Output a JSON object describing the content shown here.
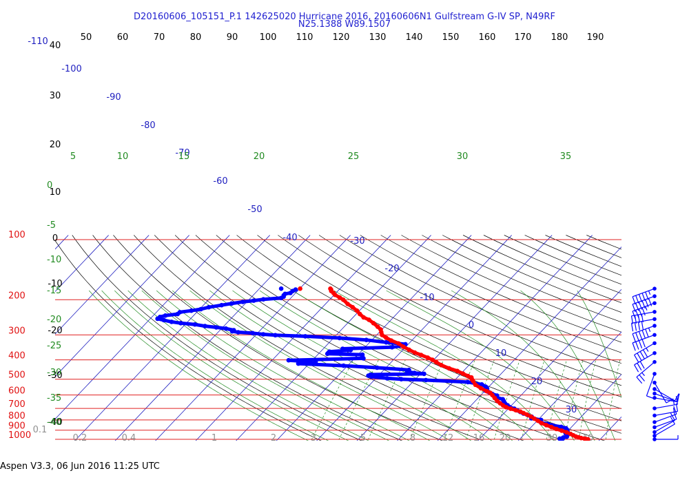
{
  "header": {
    "title_line1": "D20160606_105151_P.1 142625020 Hurricane 2016, 20160606N1 Gulfstream G-IV SP, N49RF",
    "title_line2": "N25.1388 W89.1507"
  },
  "footer": {
    "text": "Aspen V3.3, 06 Jun 2016  11:25 UTC"
  },
  "colors": {
    "pressure_lines": "#e02020",
    "pressure_labels": "#e01010",
    "isotherms": "#2020c0",
    "dry_adiabats": "#000000",
    "moist_adiabats": "#208a20",
    "mixing_ratio": "#208a20",
    "temperature_trace": "#ff0000",
    "dewpoint_trace": "#0000ff",
    "wind_barbs": "#0000ff"
  },
  "chart_data": {
    "type": "skew-t log-p sounding",
    "title": "D20160606_105151_P.1 142625020 Hurricane 2016, 20160606N1 Gulfstream G-IV SP, N49RF N25.1388 W89.1507",
    "pressure_axis": {
      "label_values": [
        "100",
        "200",
        "300",
        "400",
        "500",
        "600",
        "700",
        "800",
        "900",
        "1000"
      ],
      "scale": "log",
      "range_hPa": [
        100,
        1050
      ]
    },
    "top_axis": {
      "labels": [
        "50",
        "60",
        "70",
        "80",
        "90",
        "100",
        "110",
        "120",
        "130",
        "140",
        "150",
        "160",
        "170",
        "180",
        "190"
      ]
    },
    "left_temperature_labels": [
      "40",
      "30",
      "20",
      "10",
      "0",
      "-10",
      "-20",
      "-30",
      "-40"
    ],
    "isotherm_labels": [
      {
        "t": -110,
        "text": "-110"
      },
      {
        "t": -100,
        "text": "-100"
      },
      {
        "t": -90,
        "text": "-90"
      },
      {
        "t": -80,
        "text": "-80"
      },
      {
        "t": -70,
        "text": "-70"
      },
      {
        "t": -60,
        "text": "-60"
      },
      {
        "t": -50,
        "text": "-50"
      },
      {
        "t": -40,
        "text": "-40"
      },
      {
        "t": -30,
        "text": "-30"
      },
      {
        "t": -20,
        "text": "-20"
      },
      {
        "t": -10,
        "text": "-10"
      },
      {
        "t": 0,
        "text": "0"
      },
      {
        "t": 10,
        "text": "10"
      },
      {
        "t": 20,
        "text": "20"
      },
      {
        "t": 30,
        "text": "30"
      }
    ],
    "moist_adiabat_top_labels": [
      "5",
      "10",
      "15",
      "20",
      "25",
      "30",
      "35"
    ],
    "moist_adiabat_left_labels": [
      "0",
      "-5",
      "-10",
      "-15",
      "-20",
      "-25",
      "-30",
      "-35",
      "-40"
    ],
    "mixing_ratio_labels": [
      "0.1",
      "0.2",
      "0.4",
      "1",
      "2",
      "3",
      "5",
      "8",
      "12",
      "16",
      "20",
      "30",
      "40"
    ],
    "temperature_profile": {
      "name": "Temperature",
      "pressure_hPa": [
        1001,
        998,
        993,
        986,
        977,
        968,
        955,
        940,
        922,
        905,
        888,
        868,
        849,
        829,
        808,
        788,
        770,
        752,
        739,
        727,
        715,
        703,
        690,
        676,
        660,
        642,
        621,
        600,
        585,
        575,
        555,
        533,
        510,
        500,
        490,
        482,
        469,
        455,
        441,
        425,
        411,
        400,
        390,
        378,
        368,
        356,
        344,
        331,
        320,
        310,
        300,
        291,
        282,
        273,
        262,
        252,
        245,
        236,
        227,
        218,
        210,
        200,
        195,
        189,
        185,
        181,
        178,
        176
      ],
      "temp_C": [
        27.0,
        26.5,
        26.0,
        25.0,
        24.2,
        23.3,
        22.4,
        21.4,
        20.0,
        18.4,
        16.7,
        15.0,
        13.3,
        11.6,
        10.2,
        8.8,
        7.5,
        6.0,
        4.8,
        3.7,
        2.2,
        0.6,
        -0.9,
        -2.1,
        -3.3,
        -4.6,
        -5.9,
        -7.2,
        -8.2,
        -9.4,
        -11.6,
        -13.8,
        -15.3,
        -16.0,
        -16.5,
        -17.7,
        -19.5,
        -21.5,
        -24.2,
        -26.9,
        -28.8,
        -30.3,
        -32.0,
        -34.3,
        -36.4,
        -38.5,
        -40.6,
        -42.6,
        -45.1,
        -47.0,
        -48.7,
        -49.5,
        -50.3,
        -51.7,
        -53.6,
        -55.5,
        -57.4,
        -59.1,
        -60.6,
        -62.5,
        -64.5,
        -66.6,
        -68.0,
        -69.8,
        -70.6,
        -71.6,
        -72.0,
        -72.4
      ],
      "isolated_point": {
        "pressure_hPa": 176,
        "temp_C": -79.9
      }
    },
    "dewpoint_profile": {
      "name": "Dewpoint",
      "pressure_hPa": [
        1000,
        997,
        993,
        988,
        980,
        970,
        955,
        940,
        926,
        911,
        895,
        880,
        866,
        852,
        838,
        825,
        812,
        800,
        785,
        771,
        757,
        743,
        729,
        716,
        703,
        690,
        675,
        660,
        644,
        630,
        617,
        604,
        592,
        581,
        570,
        557,
        545,
        531,
        517,
        505,
        500,
        495,
        486,
        480,
        474,
        470,
        465,
        458,
        449,
        438,
        428,
        418,
        410,
        402,
        393,
        387,
        381,
        377,
        373,
        368,
        364,
        358,
        352,
        346,
        340,
        334,
        327,
        318,
        311,
        305,
        301,
        298,
        294,
        291,
        288,
        284,
        279,
        275,
        271,
        266,
        262,
        258,
        253,
        249,
        244,
        240,
        236,
        231,
        227,
        223,
        218,
        213,
        209,
        205,
        202,
        199,
        196,
        193,
        190,
        187,
        185,
        181,
        178
      ],
      "dewpoint_C": [
        20.5,
        20.0,
        19.8,
        20.5,
        20.4,
        21.1,
        20.9,
        20.3,
        19.8,
        20.0,
        19.5,
        18.9,
        17.4,
        14.9,
        13.4,
        11.4,
        10.8,
        10.8,
        8.0,
        7.7,
        6.4,
        4.9,
        3.7,
        2.6,
        1.5,
        0.0,
        -1.0,
        -2.1,
        -2.9,
        -3.6,
        -5.6,
        -5.9,
        -7.5,
        -8.7,
        -10.0,
        -10.0,
        -10.8,
        -12.3,
        -16.3,
        -27.2,
        -33.5,
        -37.2,
        -41.4,
        -42.5,
        -42.2,
        -29.1,
        -31.7,
        -33.8,
        -33.8,
        -42.2,
        -51.0,
        -62.7,
        -58.8,
        -65.9,
        -47.8,
        -48.4,
        -48.7,
        -48.9,
        -57.8,
        -57.8,
        -57.8,
        -52.9,
        -55.2,
        -43.3,
        -41.1,
        -40.7,
        -45.9,
        -51.4,
        -58.5,
        -67.4,
        -75.1,
        -78.3,
        -81.2,
        -85.0,
        -86.7,
        -86.6,
        -88.9,
        -91.6,
        -94.7,
        -97.6,
        -101.4,
        -104.0,
        -106.3,
        -108.2,
        -108.0,
        -107.0,
        -104.3,
        -104.2,
        -101.7,
        -99.7,
        -98.2,
        -95.5,
        -93.4,
        -91.0,
        -88.6,
        -86.5,
        -82.4,
        -82.1,
        -82.4,
        -82.4,
        -81.3,
        -81.2,
        -80.8
      ],
      "isolated_point": {
        "pressure_hPa": 176,
        "temp_C": -84.6
      }
    },
    "wind_barbs": {
      "pressure_hPa": [
        176,
        192,
        208,
        230,
        250,
        270,
        300,
        330,
        370,
        410,
        470,
        520,
        560,
        590,
        620,
        700,
        760,
        820,
        870,
        920,
        960,
        1000
      ],
      "speed_kt": [
        55,
        60,
        45,
        40,
        40,
        55,
        40,
        45,
        30,
        25,
        10,
        10,
        10,
        10,
        10,
        15,
        15,
        10,
        10,
        10,
        10,
        5
      ],
      "direction_deg": [
        250,
        250,
        250,
        260,
        260,
        250,
        250,
        240,
        240,
        230,
        200,
        150,
        120,
        110,
        100,
        80,
        80,
        70,
        70,
        60,
        60,
        90
      ]
    },
    "grid": true,
    "legend": "none"
  }
}
